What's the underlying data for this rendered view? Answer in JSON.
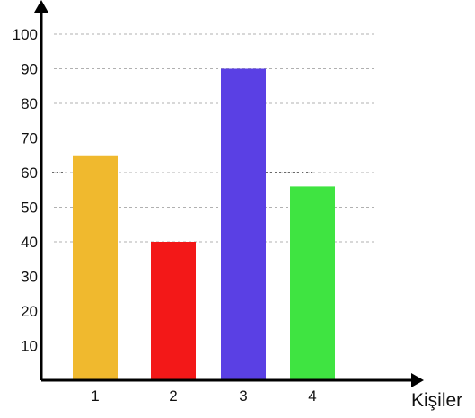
{
  "chart_data": {
    "type": "bar",
    "title": "",
    "xlabel": "Kişiler",
    "ylabel": "",
    "categories": [
      "1",
      "2",
      "3",
      "4"
    ],
    "values": [
      65,
      40,
      90,
      56
    ],
    "colors": [
      "#F0B92E",
      "#F31818",
      "#5A40E4",
      "#3FE441"
    ],
    "ylim": [
      0,
      100
    ],
    "yticks": [
      10,
      20,
      30,
      40,
      50,
      60,
      70,
      80,
      90,
      100
    ],
    "grid": true,
    "grid_lines_at": [
      40,
      50,
      60,
      70,
      80,
      90,
      100
    ],
    "reference_lines": [
      {
        "y": 60,
        "between_categories": [
          "3",
          "4"
        ]
      }
    ],
    "legend": "none"
  }
}
